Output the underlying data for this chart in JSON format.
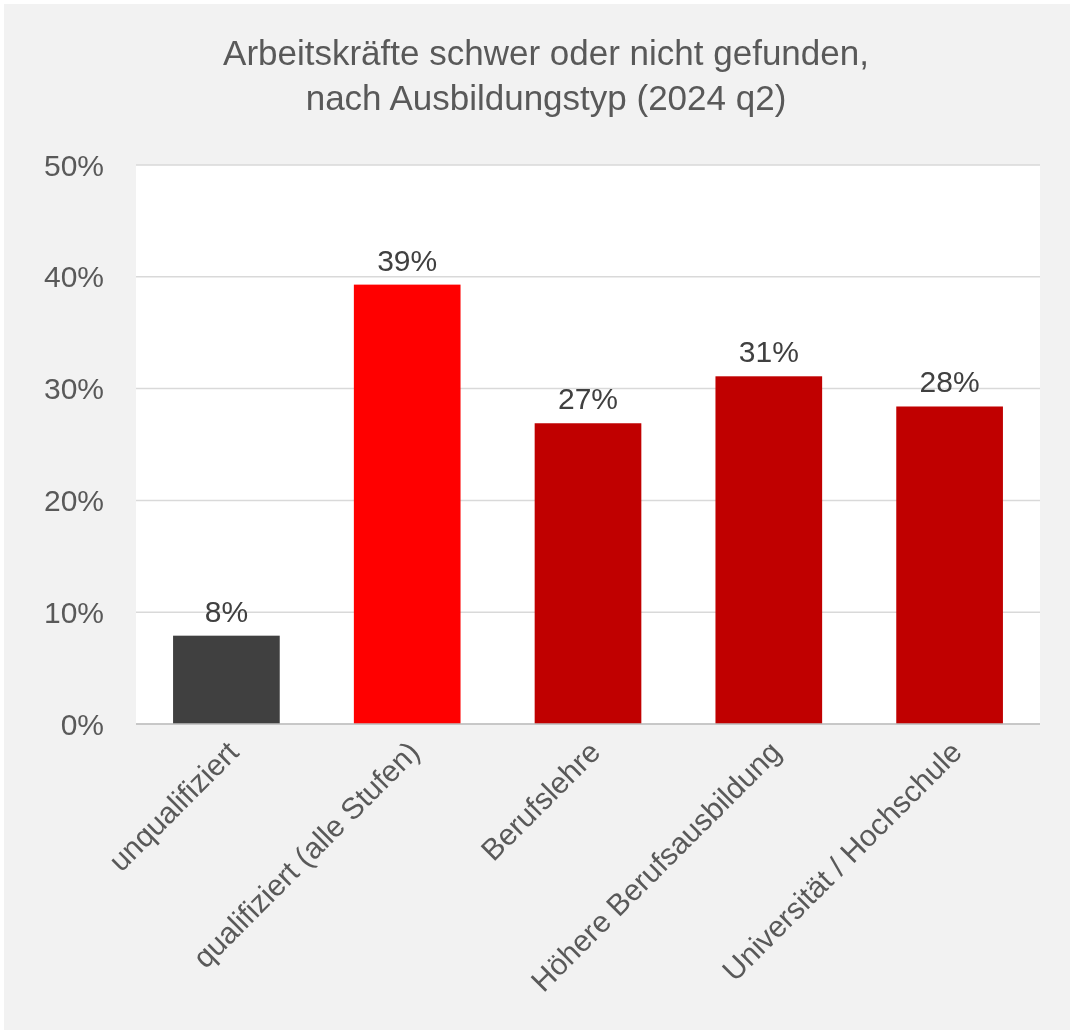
{
  "chart_data": {
    "type": "bar",
    "title": "Arbeitskräfte schwer oder nicht gefunden, nach Ausbildungstyp (2024 q2)",
    "categories": [
      "unqualifiziert",
      "qualifiziert (alle Stufen)",
      "Berufslehre",
      "Höhere Berufsausbildung",
      "Universität / Hochschule"
    ],
    "values": [
      7.9,
      39.3,
      26.9,
      31.1,
      28.4
    ],
    "colors": [
      "#404040",
      "#ff0000",
      "#c00000",
      "#c00000",
      "#c00000"
    ],
    "value_labels": [
      "8%",
      "39%",
      "27%",
      "31%",
      "28%"
    ],
    "ylim": [
      0,
      50
    ],
    "yticks": [
      {
        "value": 0,
        "label": "0%"
      },
      {
        "value": 10,
        "label": "10%"
      },
      {
        "value": 20,
        "label": "20%"
      },
      {
        "value": 30,
        "label": "30%"
      },
      {
        "value": 40,
        "label": "40%"
      },
      {
        "value": 50,
        "label": "50%"
      }
    ],
    "grid": "y"
  }
}
